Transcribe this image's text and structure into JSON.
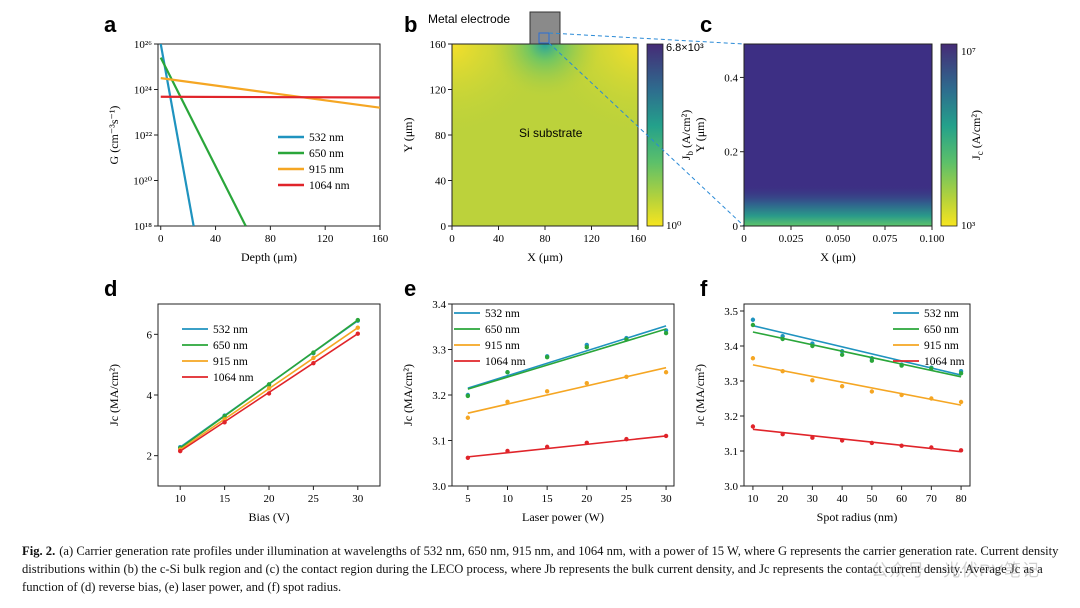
{
  "panels": {
    "a": {
      "letter": "a"
    },
    "b": {
      "letter": "b",
      "electrode_label": "Metal electrode",
      "region_label": "Si substrate"
    },
    "c": {
      "letter": "c"
    },
    "d": {
      "letter": "d"
    },
    "e": {
      "letter": "e"
    },
    "f": {
      "letter": "f"
    }
  },
  "chart_data": [
    {
      "id": "a",
      "type": "line",
      "xlabel": "Depth (μm)",
      "ylabel": "G (cm⁻³s⁻¹)",
      "xlim": [
        -2,
        160
      ],
      "ylim_log10": [
        18,
        26
      ],
      "y_log_scale": true,
      "x_ticks": [
        "0",
        "40",
        "80",
        "120",
        "160"
      ],
      "y_ticks": [
        "10¹⁸",
        "10²⁰",
        "10²²",
        "10²⁴",
        "10²⁶"
      ],
      "legend_position": "lower-right",
      "series": [
        {
          "name": "532 nm",
          "color": "#1f93bf",
          "x": [
            0,
            24
          ],
          "log10_y": [
            26,
            18
          ]
        },
        {
          "name": "650 nm",
          "color": "#2aa63a",
          "x": [
            0,
            62
          ],
          "log10_y": [
            25.4,
            18
          ]
        },
        {
          "name": "915 nm",
          "color": "#f5a623",
          "x": [
            0,
            160
          ],
          "log10_y": [
            24.5,
            23.2
          ]
        },
        {
          "name": "1064 nm",
          "color": "#e0242a",
          "x": [
            0,
            160
          ],
          "log10_y": [
            23.68,
            23.65
          ]
        }
      ]
    },
    {
      "id": "b",
      "type": "heatmap",
      "xlabel": "X (μm)",
      "ylabel": "Y (μm)",
      "colorbar_label": "Jb (A/cm²)",
      "colorbar_max": "6.8×10³",
      "colorbar_min": "10⁰",
      "x_ticks": [
        "0",
        "40",
        "80",
        "120",
        "160"
      ],
      "y_ticks": [
        "0",
        "40",
        "80",
        "120",
        "160"
      ]
    },
    {
      "id": "c",
      "type": "heatmap",
      "xlabel": "X (μm)",
      "ylabel": "Y (μm)",
      "colorbar_label": "Jc (A/cm²)",
      "colorbar_max": "10⁷",
      "colorbar_min": "10³",
      "x_ticks": [
        "0",
        "0.025",
        "0.050",
        "0.075",
        "0.100"
      ],
      "y_ticks": [
        "0",
        "0.2",
        "0.4"
      ]
    },
    {
      "id": "d",
      "type": "scatter",
      "xlabel": "Bias (V)",
      "ylabel": "Jc (MA/cm²)",
      "xlim": [
        7.5,
        32.5
      ],
      "ylim": [
        1,
        7
      ],
      "x_ticks": [
        "10",
        "15",
        "20",
        "25",
        "30"
      ],
      "y_ticks": [
        "2",
        "4",
        "6"
      ],
      "legend_position": "upper-left",
      "x": [
        10,
        15,
        20,
        25,
        30
      ],
      "series": [
        {
          "name": "532 nm",
          "color": "#1f93bf",
          "values": [
            2.28,
            3.32,
            4.33,
            5.38,
            6.45
          ]
        },
        {
          "name": "650 nm",
          "color": "#2aa63a",
          "values": [
            2.25,
            3.3,
            4.35,
            5.4,
            6.47
          ]
        },
        {
          "name": "915 nm",
          "color": "#f5a623",
          "values": [
            2.2,
            3.2,
            4.22,
            5.22,
            6.22
          ]
        },
        {
          "name": "1064 nm",
          "color": "#e0242a",
          "values": [
            2.15,
            3.1,
            4.05,
            5.05,
            6.02
          ]
        }
      ]
    },
    {
      "id": "e",
      "type": "scatter",
      "xlabel": "Laser power (W)",
      "ylabel": "Jc (MA/cm²)",
      "xlim": [
        3,
        31
      ],
      "ylim": [
        3.0,
        3.4
      ],
      "x_ticks": [
        "5",
        "10",
        "15",
        "20",
        "25",
        "30"
      ],
      "y_ticks": [
        "3.0",
        "3.1",
        "3.2",
        "3.3",
        "3.4"
      ],
      "legend_position": "upper-left",
      "x": [
        5,
        10,
        15,
        20,
        25,
        30
      ],
      "series": [
        {
          "name": "532 nm",
          "color": "#1f93bf",
          "values": [
            3.2,
            3.25,
            3.285,
            3.31,
            3.325,
            3.342
          ],
          "fit": [
            3.215,
            3.352
          ]
        },
        {
          "name": "650 nm",
          "color": "#2aa63a",
          "values": [
            3.198,
            3.25,
            3.283,
            3.305,
            3.322,
            3.336
          ],
          "fit": [
            3.213,
            3.345
          ]
        },
        {
          "name": "915 nm",
          "color": "#f5a623",
          "values": [
            3.15,
            3.185,
            3.208,
            3.226,
            3.24,
            3.25
          ],
          "fit": [
            3.16,
            3.26
          ]
        },
        {
          "name": "1064 nm",
          "color": "#e0242a",
          "values": [
            3.062,
            3.077,
            3.086,
            3.095,
            3.103,
            3.11
          ],
          "fit": [
            3.064,
            3.11
          ]
        }
      ]
    },
    {
      "id": "f",
      "type": "scatter",
      "xlabel": "Spot radius (nm)",
      "ylabel": "Jc (MA/cm²)",
      "xlim": [
        7,
        83
      ],
      "ylim": [
        3.0,
        3.52
      ],
      "x_ticks": [
        "10",
        "20",
        "30",
        "40",
        "50",
        "60",
        "70",
        "80"
      ],
      "y_ticks": [
        "3.0",
        "3.1",
        "3.2",
        "3.3",
        "3.4",
        "3.5"
      ],
      "legend_position": "upper-right",
      "x": [
        10,
        20,
        30,
        40,
        50,
        60,
        70,
        80
      ],
      "series": [
        {
          "name": "532 nm",
          "color": "#1f93bf",
          "values": [
            3.475,
            3.428,
            3.407,
            3.385,
            3.365,
            3.347,
            3.338,
            3.328
          ],
          "fit": [
            3.458,
            3.317
          ]
        },
        {
          "name": "650 nm",
          "color": "#2aa63a",
          "values": [
            3.46,
            3.42,
            3.4,
            3.375,
            3.358,
            3.344,
            3.336,
            3.322
          ],
          "fit": [
            3.44,
            3.312
          ]
        },
        {
          "name": "915 nm",
          "color": "#f5a623",
          "values": [
            3.365,
            3.328,
            3.302,
            3.285,
            3.27,
            3.26,
            3.25,
            3.24
          ],
          "fit": [
            3.346,
            3.231
          ]
        },
        {
          "name": "1064 nm",
          "color": "#e0242a",
          "values": [
            3.17,
            3.148,
            3.138,
            3.13,
            3.123,
            3.115,
            3.11,
            3.102
          ],
          "fit": [
            3.162,
            3.098
          ]
        }
      ]
    }
  ],
  "caption": {
    "label": "Fig. 2.",
    "text": "(a) Carrier generation rate profiles under illumination at wavelengths of 532 nm, 650 nm, 915 nm, and 1064 nm, with a power of 15 W, where G represents the carrier generation rate. Current density distributions within (b) the c-Si bulk region and (c) the contact region during the LECO process, where Jb represents the bulk current density, and Jc represents the contact current density. Average Jc as a function of (d) reverse bias, (e) laser power, and (f) spot radius."
  },
  "watermark": "公众号 · 光伏PV笔记"
}
